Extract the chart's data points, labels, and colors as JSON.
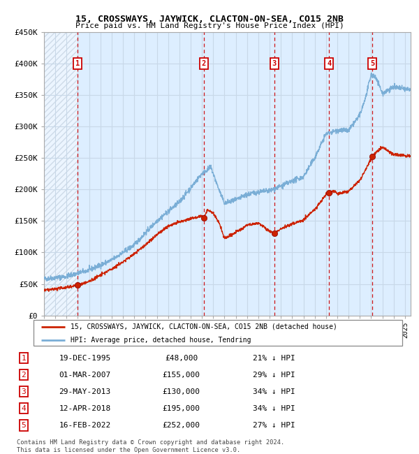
{
  "title": "15, CROSSWAYS, JAYWICK, CLACTON-ON-SEA, CO15 2NB",
  "subtitle": "Price paid vs. HM Land Registry's House Price Index (HPI)",
  "ylim": [
    0,
    450000
  ],
  "yticks": [
    0,
    50000,
    100000,
    150000,
    200000,
    250000,
    300000,
    350000,
    400000,
    450000
  ],
  "ytick_labels": [
    "£0",
    "£50K",
    "£100K",
    "£150K",
    "£200K",
    "£250K",
    "£300K",
    "£350K",
    "£400K",
    "£450K"
  ],
  "hpi_color": "#7aaed6",
  "price_color": "#cc2200",
  "dot_color": "#cc2200",
  "bg_color": "#ddeeff",
  "grid_color": "#c8d8e8",
  "vline_color": "#cc0000",
  "sale_dates_x": [
    1995.97,
    2007.17,
    2013.41,
    2018.28,
    2022.12
  ],
  "sale_prices": [
    48000,
    155000,
    130000,
    195000,
    252000
  ],
  "sale_labels": [
    "1",
    "2",
    "3",
    "4",
    "5"
  ],
  "legend_price_label": "15, CROSSWAYS, JAYWICK, CLACTON-ON-SEA, CO15 2NB (detached house)",
  "legend_hpi_label": "HPI: Average price, detached house, Tendring",
  "table_entries": [
    {
      "num": "1",
      "date": "19-DEC-1995",
      "price": "£48,000",
      "pct": "21% ↓ HPI"
    },
    {
      "num": "2",
      "date": "01-MAR-2007",
      "price": "£155,000",
      "pct": "29% ↓ HPI"
    },
    {
      "num": "3",
      "date": "29-MAY-2013",
      "price": "£130,000",
      "pct": "34% ↓ HPI"
    },
    {
      "num": "4",
      "date": "12-APR-2018",
      "price": "£195,000",
      "pct": "34% ↓ HPI"
    },
    {
      "num": "5",
      "date": "16-FEB-2022",
      "price": "£252,000",
      "pct": "27% ↓ HPI"
    }
  ],
  "footer": "Contains HM Land Registry data © Crown copyright and database right 2024.\nThis data is licensed under the Open Government Licence v3.0.",
  "xmin": 1993.0,
  "xmax": 2025.5
}
